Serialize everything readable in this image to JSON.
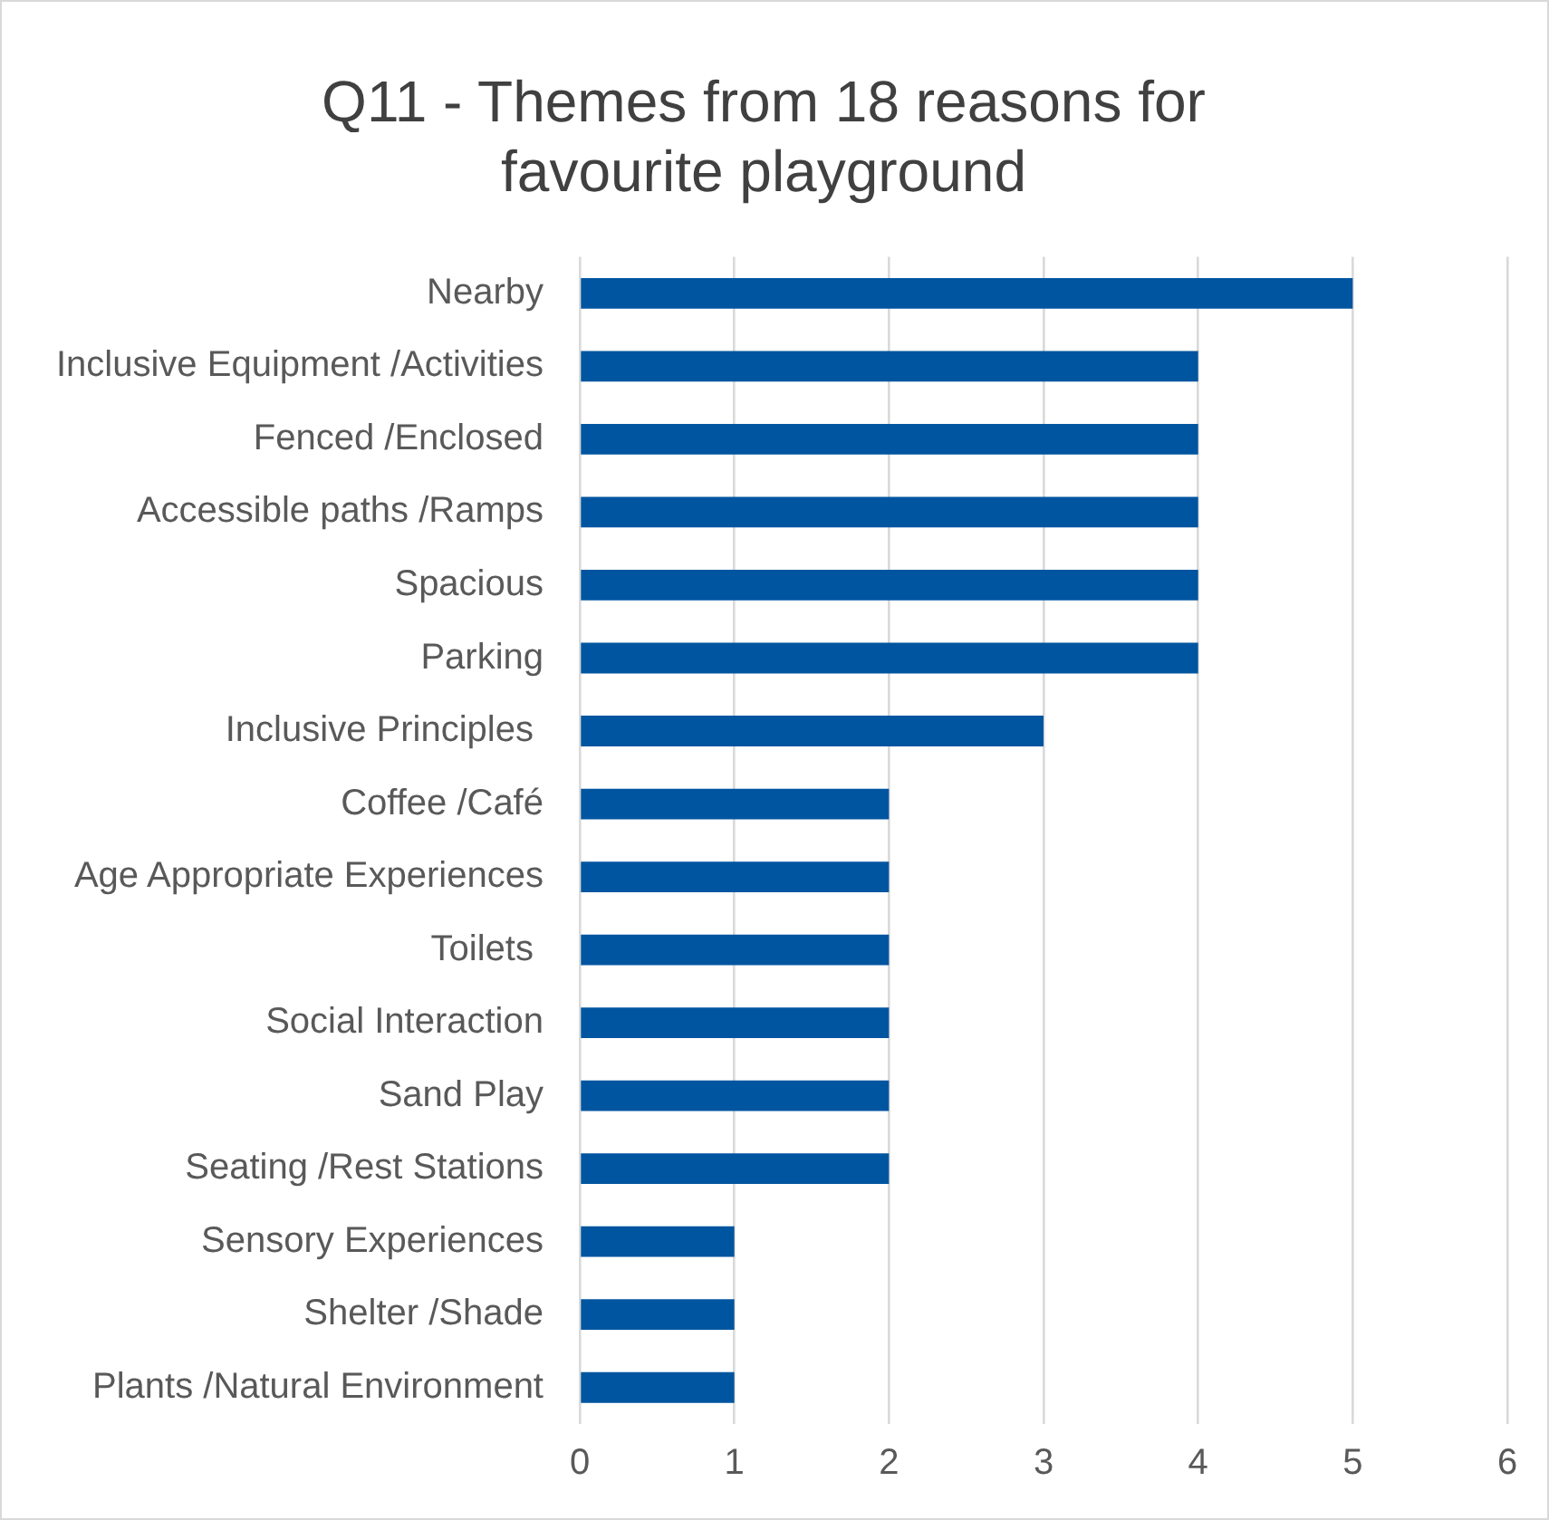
{
  "chart_data": {
    "type": "bar",
    "orientation": "horizontal",
    "title": "Q11 - Themes from 18 reasons for favourite playground",
    "categories": [
      "Nearby",
      "Inclusive Equipment /Activities",
      "Fenced /Enclosed",
      "Accessible paths /Ramps",
      "Spacious",
      "Parking",
      "Inclusive Principles ",
      "Coffee /Café",
      "Age Appropriate Experiences",
      "Toilets ",
      "Social Interaction",
      "Sand Play",
      "Seating /Rest Stations",
      "Sensory Experiences",
      "Shelter /Shade",
      "Plants /Natural Environment"
    ],
    "values": [
      5,
      4,
      4,
      4,
      4,
      4,
      3,
      2,
      2,
      2,
      2,
      2,
      2,
      1,
      1,
      1
    ],
    "color": "#0055a0",
    "xlim": [
      0,
      6
    ],
    "xticks": [
      0,
      1,
      2,
      3,
      4,
      5,
      6
    ],
    "grid": "x",
    "legend": false
  }
}
